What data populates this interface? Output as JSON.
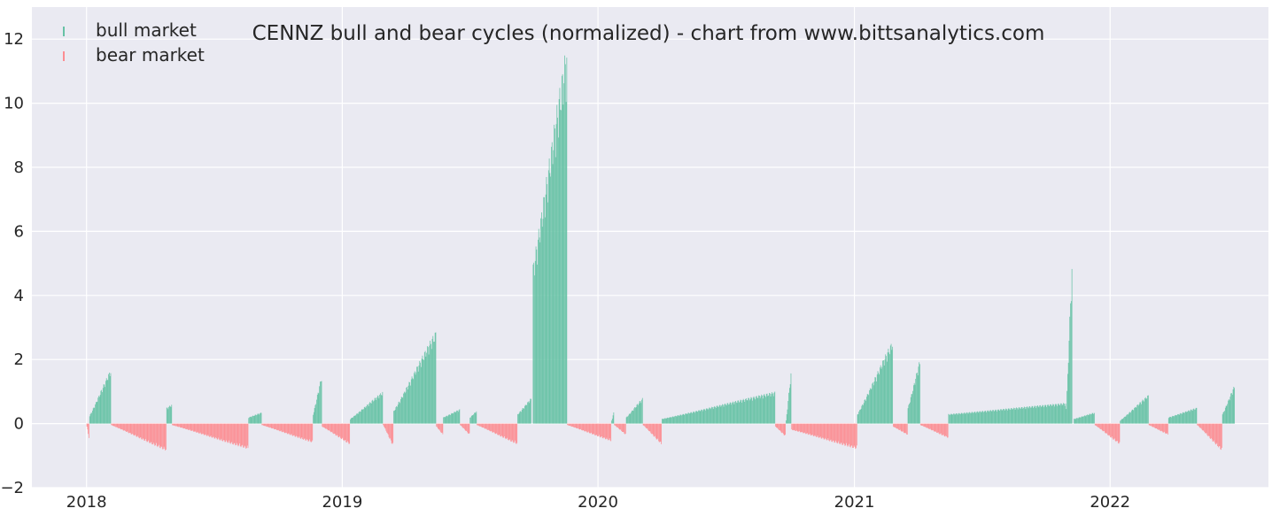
{
  "chart_data": {
    "type": "bar",
    "title": "CENNZ bull and bear cycles (normalized)  - chart from www.bittsanalytics.com",
    "xlabel": "",
    "ylabel": "",
    "x_range": [
      "2017-10-15",
      "2022-08-15"
    ],
    "ylim": [
      -2,
      13
    ],
    "x_ticks": [
      {
        "date": "2018-01-01",
        "label": "2018"
      },
      {
        "date": "2019-01-01",
        "label": "2019"
      },
      {
        "date": "2020-01-01",
        "label": "2020"
      },
      {
        "date": "2021-01-01",
        "label": "2021"
      },
      {
        "date": "2022-01-01",
        "label": "2022"
      }
    ],
    "y_ticks": [
      -2,
      0,
      2,
      4,
      6,
      8,
      10,
      12
    ],
    "grid": true,
    "legend_position": "top-left",
    "colors": {
      "bull": "#66c2a5",
      "bear": "#fc8d92",
      "background": "#eaeaf2",
      "grid": "#ffffff"
    },
    "series": [
      {
        "name": "bull market",
        "color": "#66c2a5",
        "segments": [
          {
            "start": "2018-01-05",
            "end": "2018-02-05",
            "y0": 0.25,
            "y1": 1.7
          },
          {
            "start": "2018-04-25",
            "end": "2018-05-03",
            "y0": 0.5,
            "y1": 0.6
          },
          {
            "start": "2018-08-20",
            "end": "2018-09-08",
            "y0": 0.2,
            "y1": 0.35
          },
          {
            "start": "2018-11-20",
            "end": "2018-12-03",
            "y0": 0.3,
            "y1": 1.5
          },
          {
            "start": "2019-01-12",
            "end": "2019-02-28",
            "y0": 0.15,
            "y1": 1.0
          },
          {
            "start": "2019-03-15",
            "end": "2019-05-15",
            "y0": 0.4,
            "y1": 2.9
          },
          {
            "start": "2019-05-25",
            "end": "2019-06-18",
            "y0": 0.2,
            "y1": 0.45
          },
          {
            "start": "2019-07-02",
            "end": "2019-07-12",
            "y0": 0.2,
            "y1": 0.4
          },
          {
            "start": "2019-09-08",
            "end": "2019-09-28",
            "y0": 0.3,
            "y1": 0.8
          },
          {
            "start": "2019-09-30",
            "end": "2019-11-18",
            "y0": 5.0,
            "y1": 11.9
          },
          {
            "start": "2020-01-20",
            "end": "2020-01-24",
            "y0": 0.1,
            "y1": 0.35
          },
          {
            "start": "2020-02-10",
            "end": "2020-03-05",
            "y0": 0.2,
            "y1": 0.8
          },
          {
            "start": "2020-04-01",
            "end": "2020-09-10",
            "y0": 0.15,
            "y1": 1.0
          },
          {
            "start": "2020-09-25",
            "end": "2020-10-03",
            "y0": 0.1,
            "y1": 1.6
          },
          {
            "start": "2021-01-05",
            "end": "2021-02-25",
            "y0": 0.3,
            "y1": 2.6
          },
          {
            "start": "2021-03-18",
            "end": "2021-04-05",
            "y0": 0.5,
            "y1": 2.0
          },
          {
            "start": "2021-05-15",
            "end": "2021-10-30",
            "y0": 0.3,
            "y1": 0.65
          },
          {
            "start": "2021-10-30",
            "end": "2021-11-08",
            "y0": 0.5,
            "y1": 5.0
          },
          {
            "start": "2021-11-10",
            "end": "2021-12-10",
            "y0": 0.15,
            "y1": 0.35
          },
          {
            "start": "2022-01-15",
            "end": "2022-02-25",
            "y0": 0.1,
            "y1": 0.9
          },
          {
            "start": "2022-03-25",
            "end": "2022-05-05",
            "y0": 0.2,
            "y1": 0.5
          },
          {
            "start": "2022-06-10",
            "end": "2022-06-28",
            "y0": 0.3,
            "y1": 1.2
          }
        ]
      },
      {
        "name": "bear market",
        "color": "#fc8d92",
        "segments": [
          {
            "start": "2018-01-01",
            "end": "2018-01-05",
            "y0": -0.1,
            "y1": -0.45
          },
          {
            "start": "2018-02-05",
            "end": "2018-04-25",
            "y0": -0.05,
            "y1": -0.85
          },
          {
            "start": "2018-05-03",
            "end": "2018-08-20",
            "y0": -0.05,
            "y1": -0.8
          },
          {
            "start": "2018-09-08",
            "end": "2018-11-20",
            "y0": -0.05,
            "y1": -0.6
          },
          {
            "start": "2018-12-03",
            "end": "2019-01-12",
            "y0": -0.1,
            "y1": -0.65
          },
          {
            "start": "2019-02-28",
            "end": "2019-03-15",
            "y0": -0.05,
            "y1": -0.7
          },
          {
            "start": "2019-05-15",
            "end": "2019-05-25",
            "y0": -0.1,
            "y1": -0.35
          },
          {
            "start": "2019-06-18",
            "end": "2019-07-02",
            "y0": -0.05,
            "y1": -0.35
          },
          {
            "start": "2019-07-12",
            "end": "2019-09-08",
            "y0": -0.05,
            "y1": -0.65
          },
          {
            "start": "2019-11-18",
            "end": "2020-01-20",
            "y0": -0.05,
            "y1": -0.55
          },
          {
            "start": "2020-01-24",
            "end": "2020-02-10",
            "y0": -0.05,
            "y1": -0.35
          },
          {
            "start": "2020-03-05",
            "end": "2020-04-01",
            "y0": -0.05,
            "y1": -0.65
          },
          {
            "start": "2020-09-10",
            "end": "2020-09-25",
            "y0": -0.1,
            "y1": -0.4
          },
          {
            "start": "2020-10-03",
            "end": "2021-01-05",
            "y0": -0.2,
            "y1": -0.8
          },
          {
            "start": "2021-02-25",
            "end": "2021-03-18",
            "y0": -0.1,
            "y1": -0.35
          },
          {
            "start": "2021-04-05",
            "end": "2021-05-15",
            "y0": -0.05,
            "y1": -0.45
          },
          {
            "start": "2021-12-10",
            "end": "2022-01-15",
            "y0": -0.05,
            "y1": -0.65
          },
          {
            "start": "2022-02-25",
            "end": "2022-03-25",
            "y0": -0.05,
            "y1": -0.35
          },
          {
            "start": "2022-05-05",
            "end": "2022-06-10",
            "y0": -0.05,
            "y1": -0.85
          }
        ]
      }
    ]
  }
}
